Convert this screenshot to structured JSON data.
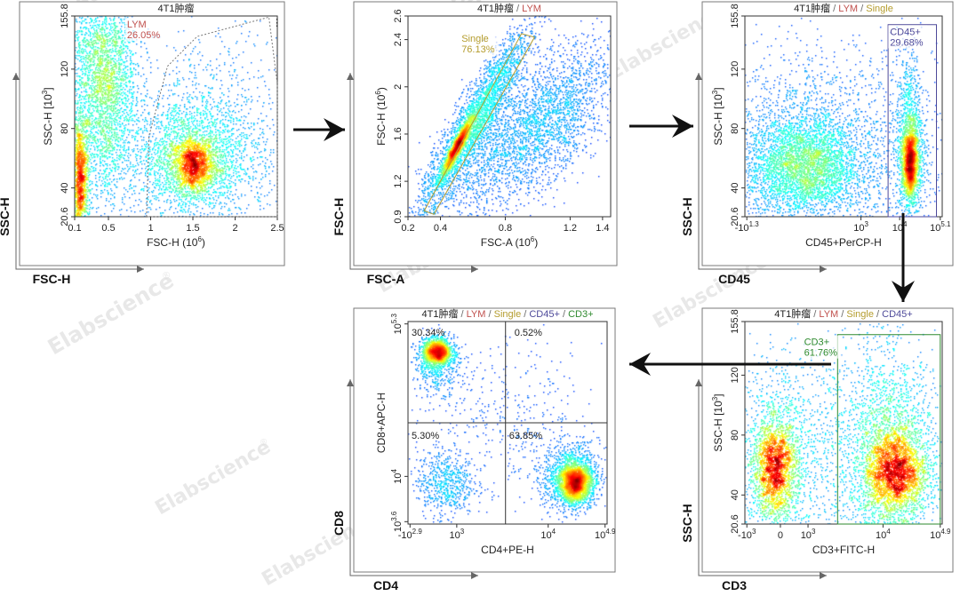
{
  "watermark": "Elabscience",
  "watermark_mark": "®",
  "colors": {
    "frame": "#333333",
    "title_dark": "#222222",
    "lym": "#c0504d",
    "single": "#b49c2d",
    "cd45": "#4e4a9a",
    "cd3": "#2e8a2e",
    "gate_gray": "#6a6a6a",
    "arrow": "#111111"
  },
  "chart_data": [
    {
      "id": "p1",
      "type": "scatter",
      "style": "density",
      "title": [
        {
          "text": "4T1肿瘤",
          "color": "title_dark"
        }
      ],
      "xlabel": "FSC-H  (10",
      "xlabel_sup": "6",
      "xlabel_end": ")",
      "ylabel": "SSC-H  [10",
      "ylabel_sup": "3",
      "ylabel_end": "]",
      "outer_x": "FSC-H",
      "outer_y": "SSC-H",
      "xlim": [
        0.1,
        2.5
      ],
      "ylim": [
        20.6,
        155.8
      ],
      "xticks": [
        "0.1",
        "0.5",
        "1",
        "1.5",
        "2",
        "2.5"
      ],
      "xtick_values": [
        0.1,
        0.5,
        1,
        1.5,
        2,
        2.5
      ],
      "yticks": [
        "20.6",
        "40",
        "80",
        "120",
        "155.8"
      ],
      "ytick_values": [
        20.6,
        40,
        80,
        120,
        155.8
      ],
      "gates": [
        {
          "name": "LYM",
          "value": "26.05%",
          "color": "lym",
          "polygon": [
            [
              0.95,
              20.6
            ],
            [
              0.98,
              75
            ],
            [
              1.2,
              122
            ],
            [
              1.55,
              142
            ],
            [
              2.4,
              155
            ],
            [
              2.5,
              110
            ],
            [
              2.5,
              20.6
            ]
          ]
        }
      ],
      "gate_label_pos": [
        0.72,
        148
      ],
      "clusters": [
        {
          "x": 1.5,
          "y": 55,
          "sx": 0.12,
          "sy": 9,
          "n": 1400
        },
        {
          "x": 1.45,
          "y": 60,
          "sx": 0.35,
          "sy": 20,
          "n": 2200
        },
        {
          "x": 0.16,
          "y": 45,
          "sx": 0.05,
          "sy": 22,
          "n": 1600
        },
        {
          "x": 0.45,
          "y": 100,
          "sx": 0.18,
          "sy": 35,
          "n": 2200
        },
        {
          "x": 0.35,
          "y": 130,
          "sx": 0.25,
          "sy": 20,
          "n": 900
        },
        {
          "x": 1.8,
          "y": 75,
          "sx": 0.45,
          "sy": 35,
          "n": 900
        }
      ]
    },
    {
      "id": "p2",
      "type": "scatter",
      "style": "density",
      "title": [
        {
          "text": "4T1肿瘤",
          "color": "title_dark"
        },
        {
          "text": " / ",
          "color": "gate_gray"
        },
        {
          "text": "LYM",
          "color": "lym"
        }
      ],
      "xlabel": "FSC-A  (10",
      "xlabel_sup": "6",
      "xlabel_end": ")",
      "ylabel": "FSC-H  (10",
      "ylabel_sup": "6",
      "ylabel_end": ")",
      "outer_x": "FSC-A",
      "outer_y": "FSC-H",
      "xlim": [
        0.2,
        1.45
      ],
      "ylim": [
        0.9,
        2.6
      ],
      "xticks": [
        "0.2",
        "0.4",
        "0.8",
        "1.2",
        "1.4"
      ],
      "xtick_values": [
        0.2,
        0.4,
        0.8,
        1.2,
        1.4
      ],
      "yticks": [
        "0.9",
        "1.2",
        "1.6",
        "2",
        "2.4",
        "2.6"
      ],
      "ytick_values": [
        0.9,
        1.2,
        1.6,
        2,
        2.4,
        2.6
      ],
      "gates": [
        {
          "name": "Single",
          "value": "76.13%",
          "color": "single",
          "polygon": [
            [
              0.3,
              0.95
            ],
            [
              0.9,
              2.45
            ],
            [
              0.98,
              2.42
            ],
            [
              0.36,
              0.92
            ]
          ]
        }
      ],
      "gate_label_pos": [
        0.53,
        2.38
      ],
      "clusters": [
        {
          "x": 0.5,
          "y": 1.5,
          "sx": 0.05,
          "sy": 0.13,
          "n": 1500,
          "corr": 0.95
        },
        {
          "x": 0.6,
          "y": 1.7,
          "sx": 0.17,
          "sy": 0.4,
          "n": 2800,
          "corr": 0.92
        },
        {
          "x": 0.9,
          "y": 1.6,
          "sx": 0.25,
          "sy": 0.35,
          "n": 2200,
          "corr": 0.7
        },
        {
          "x": 1.15,
          "y": 1.75,
          "sx": 0.15,
          "sy": 0.3,
          "n": 700,
          "corr": 0.5
        }
      ]
    },
    {
      "id": "p3",
      "type": "scatter",
      "style": "density",
      "title": [
        {
          "text": "4T1肿瘤",
          "color": "title_dark"
        },
        {
          "text": " / ",
          "color": "gate_gray"
        },
        {
          "text": "LYM",
          "color": "lym"
        },
        {
          "text": " / ",
          "color": "gate_gray"
        },
        {
          "text": "Single",
          "color": "single"
        }
      ],
      "xlabel": "CD45+PerCP-H",
      "xlabel_sup": "",
      "xlabel_end": "",
      "ylabel": "SSC-H  [10",
      "ylabel_sup": "3",
      "ylabel_end": "]",
      "outer_x": "CD45",
      "outer_y": "SSC-H",
      "xlim": [
        0,
        5.1
      ],
      "ylim": [
        20.6,
        155.8
      ],
      "xticks": [
        "-10",
        "10",
        "10",
        "10"
      ],
      "xtick_sups": [
        "1.3",
        "3",
        "4",
        "5.1"
      ],
      "xtick_values": [
        0.05,
        3.0,
        4.0,
        5.05
      ],
      "yticks": [
        "20.6",
        "40",
        "80",
        "120",
        "155.8"
      ],
      "ytick_values": [
        20.6,
        40,
        80,
        120,
        155.8
      ],
      "gates": [
        {
          "name": "CD45+",
          "value": "29.68%",
          "color": "cd45",
          "polygon": [
            [
              3.7,
              20.6
            ],
            [
              3.7,
              150
            ],
            [
              4.95,
              150
            ],
            [
              4.95,
              20.6
            ]
          ]
        }
      ],
      "gate_label_pos": [
        3.75,
        143
      ],
      "clusters": [
        {
          "x": 1.5,
          "y": 55,
          "sx": 0.7,
          "sy": 16,
          "n": 3000
        },
        {
          "x": 1.5,
          "y": 60,
          "sx": 1.1,
          "sy": 32,
          "n": 1500
        },
        {
          "x": 4.25,
          "y": 58,
          "sx": 0.1,
          "sy": 12,
          "n": 1600
        },
        {
          "x": 4.25,
          "y": 70,
          "sx": 0.18,
          "sy": 30,
          "n": 1200
        },
        {
          "x": 2.8,
          "y": 60,
          "sx": 1.6,
          "sy": 40,
          "n": 1200
        }
      ]
    },
    {
      "id": "p4",
      "type": "scatter",
      "style": "density",
      "title": [
        {
          "text": "4T1肿瘤",
          "color": "title_dark"
        },
        {
          "text": " / ",
          "color": "gate_gray"
        },
        {
          "text": "LYM",
          "color": "lym"
        },
        {
          "text": " / ",
          "color": "gate_gray"
        },
        {
          "text": "Single",
          "color": "single"
        },
        {
          "text": " / ",
          "color": "gate_gray"
        },
        {
          "text": "CD45+",
          "color": "cd45"
        }
      ],
      "xlabel": "CD3+FITC-H",
      "xlabel_sup": "",
      "xlabel_end": "",
      "ylabel": "SSC-H  [10",
      "ylabel_sup": "3",
      "ylabel_end": "]",
      "outer_x": "CD3",
      "outer_y": "SSC-H",
      "xlim": [
        0,
        5.0
      ],
      "ylim": [
        20.6,
        155.8
      ],
      "xticks": [
        "-10",
        "0",
        "10",
        "10",
        "10"
      ],
      "xtick_sups": [
        "3",
        "",
        "3",
        "4",
        "4.9"
      ],
      "xtick_values": [
        0.05,
        0.9,
        1.6,
        3.5,
        4.95
      ],
      "yticks": [
        "20.6",
        "40",
        "80",
        "120",
        "155.8"
      ],
      "ytick_values": [
        20.6,
        40,
        80,
        120,
        155.8
      ],
      "gates": [
        {
          "name": "CD3+",
          "value": "61.76%",
          "color": "cd3",
          "polygon": [
            [
              2.35,
              20.6
            ],
            [
              2.35,
              147
            ],
            [
              4.95,
              147
            ],
            [
              4.95,
              20.6
            ]
          ]
        }
      ],
      "gate_label_pos": [
        1.5,
        140
      ],
      "clusters": [
        {
          "x": 0.75,
          "y": 58,
          "sx": 0.28,
          "sy": 16,
          "n": 2000
        },
        {
          "x": 0.75,
          "y": 65,
          "sx": 0.45,
          "sy": 30,
          "n": 900
        },
        {
          "x": 3.8,
          "y": 55,
          "sx": 0.4,
          "sy": 14,
          "n": 2500
        },
        {
          "x": 3.7,
          "y": 70,
          "sx": 0.55,
          "sy": 32,
          "n": 1800
        },
        {
          "x": 2.4,
          "y": 70,
          "sx": 1.2,
          "sy": 40,
          "n": 1200
        }
      ]
    },
    {
      "id": "p5",
      "type": "scatter",
      "style": "density",
      "title": [
        {
          "text": "4T1肿瘤",
          "color": "title_dark"
        },
        {
          "text": " / ",
          "color": "gate_gray"
        },
        {
          "text": "LYM",
          "color": "lym"
        },
        {
          "text": " / ",
          "color": "gate_gray"
        },
        {
          "text": "Single",
          "color": "single"
        },
        {
          "text": " / ",
          "color": "gate_gray"
        },
        {
          "text": "CD45+",
          "color": "cd45"
        },
        {
          "text": " / ",
          "color": "gate_gray"
        },
        {
          "text": "CD3+",
          "color": "cd3"
        }
      ],
      "xlabel": "CD4+PE-H",
      "xlabel_sup": "",
      "xlabel_end": "",
      "ylabel": "CD8+APC-H",
      "ylabel_sup": "",
      "ylabel_end": "",
      "outer_x": "CD4",
      "outer_y": "CD8",
      "xlim": [
        0,
        4.9
      ],
      "ylim": [
        3.6,
        5.3
      ],
      "xticks": [
        "-10",
        "10",
        "10",
        "10"
      ],
      "xtick_sups": [
        "2.9",
        "3",
        "4",
        "4.9"
      ],
      "xtick_values": [
        0.05,
        1.2,
        3.45,
        4.85
      ],
      "yticks": [
        "10",
        "10",
        "10"
      ],
      "ytick_sups": [
        "3.6",
        "4",
        "5.3"
      ],
      "ytick_values": [
        3.62,
        4.0,
        5.28
      ],
      "quadrant": {
        "x": 2.4,
        "y": 4.45,
        "labels": [
          "30.34%",
          "0.52%",
          "5.30%",
          "63.85%"
        ]
      },
      "clusters": [
        {
          "x": 0.7,
          "y": 5.05,
          "sx": 0.18,
          "sy": 0.055,
          "n": 1500
        },
        {
          "x": 0.7,
          "y": 4.95,
          "sx": 0.28,
          "sy": 0.12,
          "n": 500
        },
        {
          "x": 4.1,
          "y": 3.95,
          "sx": 0.2,
          "sy": 0.08,
          "n": 2200
        },
        {
          "x": 4.0,
          "y": 4.0,
          "sx": 0.35,
          "sy": 0.14,
          "n": 1200
        },
        {
          "x": 0.9,
          "y": 3.95,
          "sx": 0.35,
          "sy": 0.14,
          "n": 600
        },
        {
          "x": 2.4,
          "y": 4.45,
          "sx": 1.2,
          "sy": 0.35,
          "n": 450
        }
      ]
    }
  ]
}
